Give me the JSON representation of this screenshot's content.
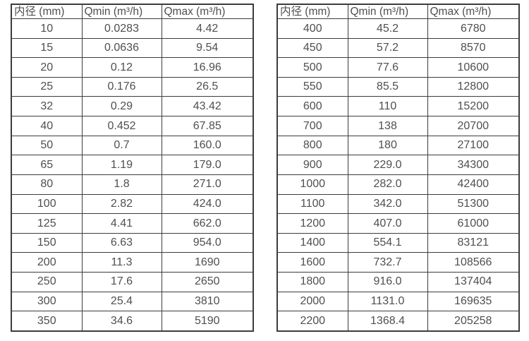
{
  "colors": {
    "border": "#3c3c3c",
    "text": "#4f4f4f",
    "background": "#ffffff"
  },
  "tables": [
    {
      "headers": [
        "内径 (mm)",
        "Qmin (m³/h)",
        "Qmax (m³/h)"
      ],
      "rows": [
        [
          "10",
          "0.0283",
          "4.42"
        ],
        [
          "15",
          "0.0636",
          "9.54"
        ],
        [
          "20",
          "0.12",
          "16.96"
        ],
        [
          "25",
          "0.176",
          "26.5"
        ],
        [
          "32",
          "0.29",
          "43.42"
        ],
        [
          "40",
          "0.452",
          "67.85"
        ],
        [
          "50",
          "0.7",
          "160.0"
        ],
        [
          "65",
          "1.19",
          "179.0"
        ],
        [
          "80",
          "1.8",
          "271.0"
        ],
        [
          "100",
          "2.82",
          "424.0"
        ],
        [
          "125",
          "4.41",
          "662.0"
        ],
        [
          "150",
          "6.63",
          "954.0"
        ],
        [
          "200",
          "11.3",
          "1690"
        ],
        [
          "250",
          "17.6",
          "2650"
        ],
        [
          "300",
          "25.4",
          "3810"
        ],
        [
          "350",
          "34.6",
          "5190"
        ]
      ]
    },
    {
      "headers": [
        "内径 (mm)",
        "Qmin (m³/h)",
        "Qmax (m³/h)"
      ],
      "rows": [
        [
          "400",
          "45.2",
          "6780"
        ],
        [
          "450",
          "57.2",
          "8570"
        ],
        [
          "500",
          "77.6",
          "10600"
        ],
        [
          "550",
          "85.5",
          "12800"
        ],
        [
          "600",
          "110",
          "15200"
        ],
        [
          "700",
          "138",
          "20700"
        ],
        [
          "800",
          "180",
          "27100"
        ],
        [
          "900",
          "229.0",
          "34300"
        ],
        [
          "1000",
          "282.0",
          "42400"
        ],
        [
          "1100",
          "342.0",
          "51300"
        ],
        [
          "1200",
          "407.0",
          "61000"
        ],
        [
          "1400",
          "554.1",
          "83121"
        ],
        [
          "1600",
          "732.7",
          "108566"
        ],
        [
          "1800",
          "916.0",
          "137404"
        ],
        [
          "2000",
          "1131.0",
          "169635"
        ],
        [
          "2200",
          "1368.4",
          "205258"
        ]
      ]
    }
  ]
}
